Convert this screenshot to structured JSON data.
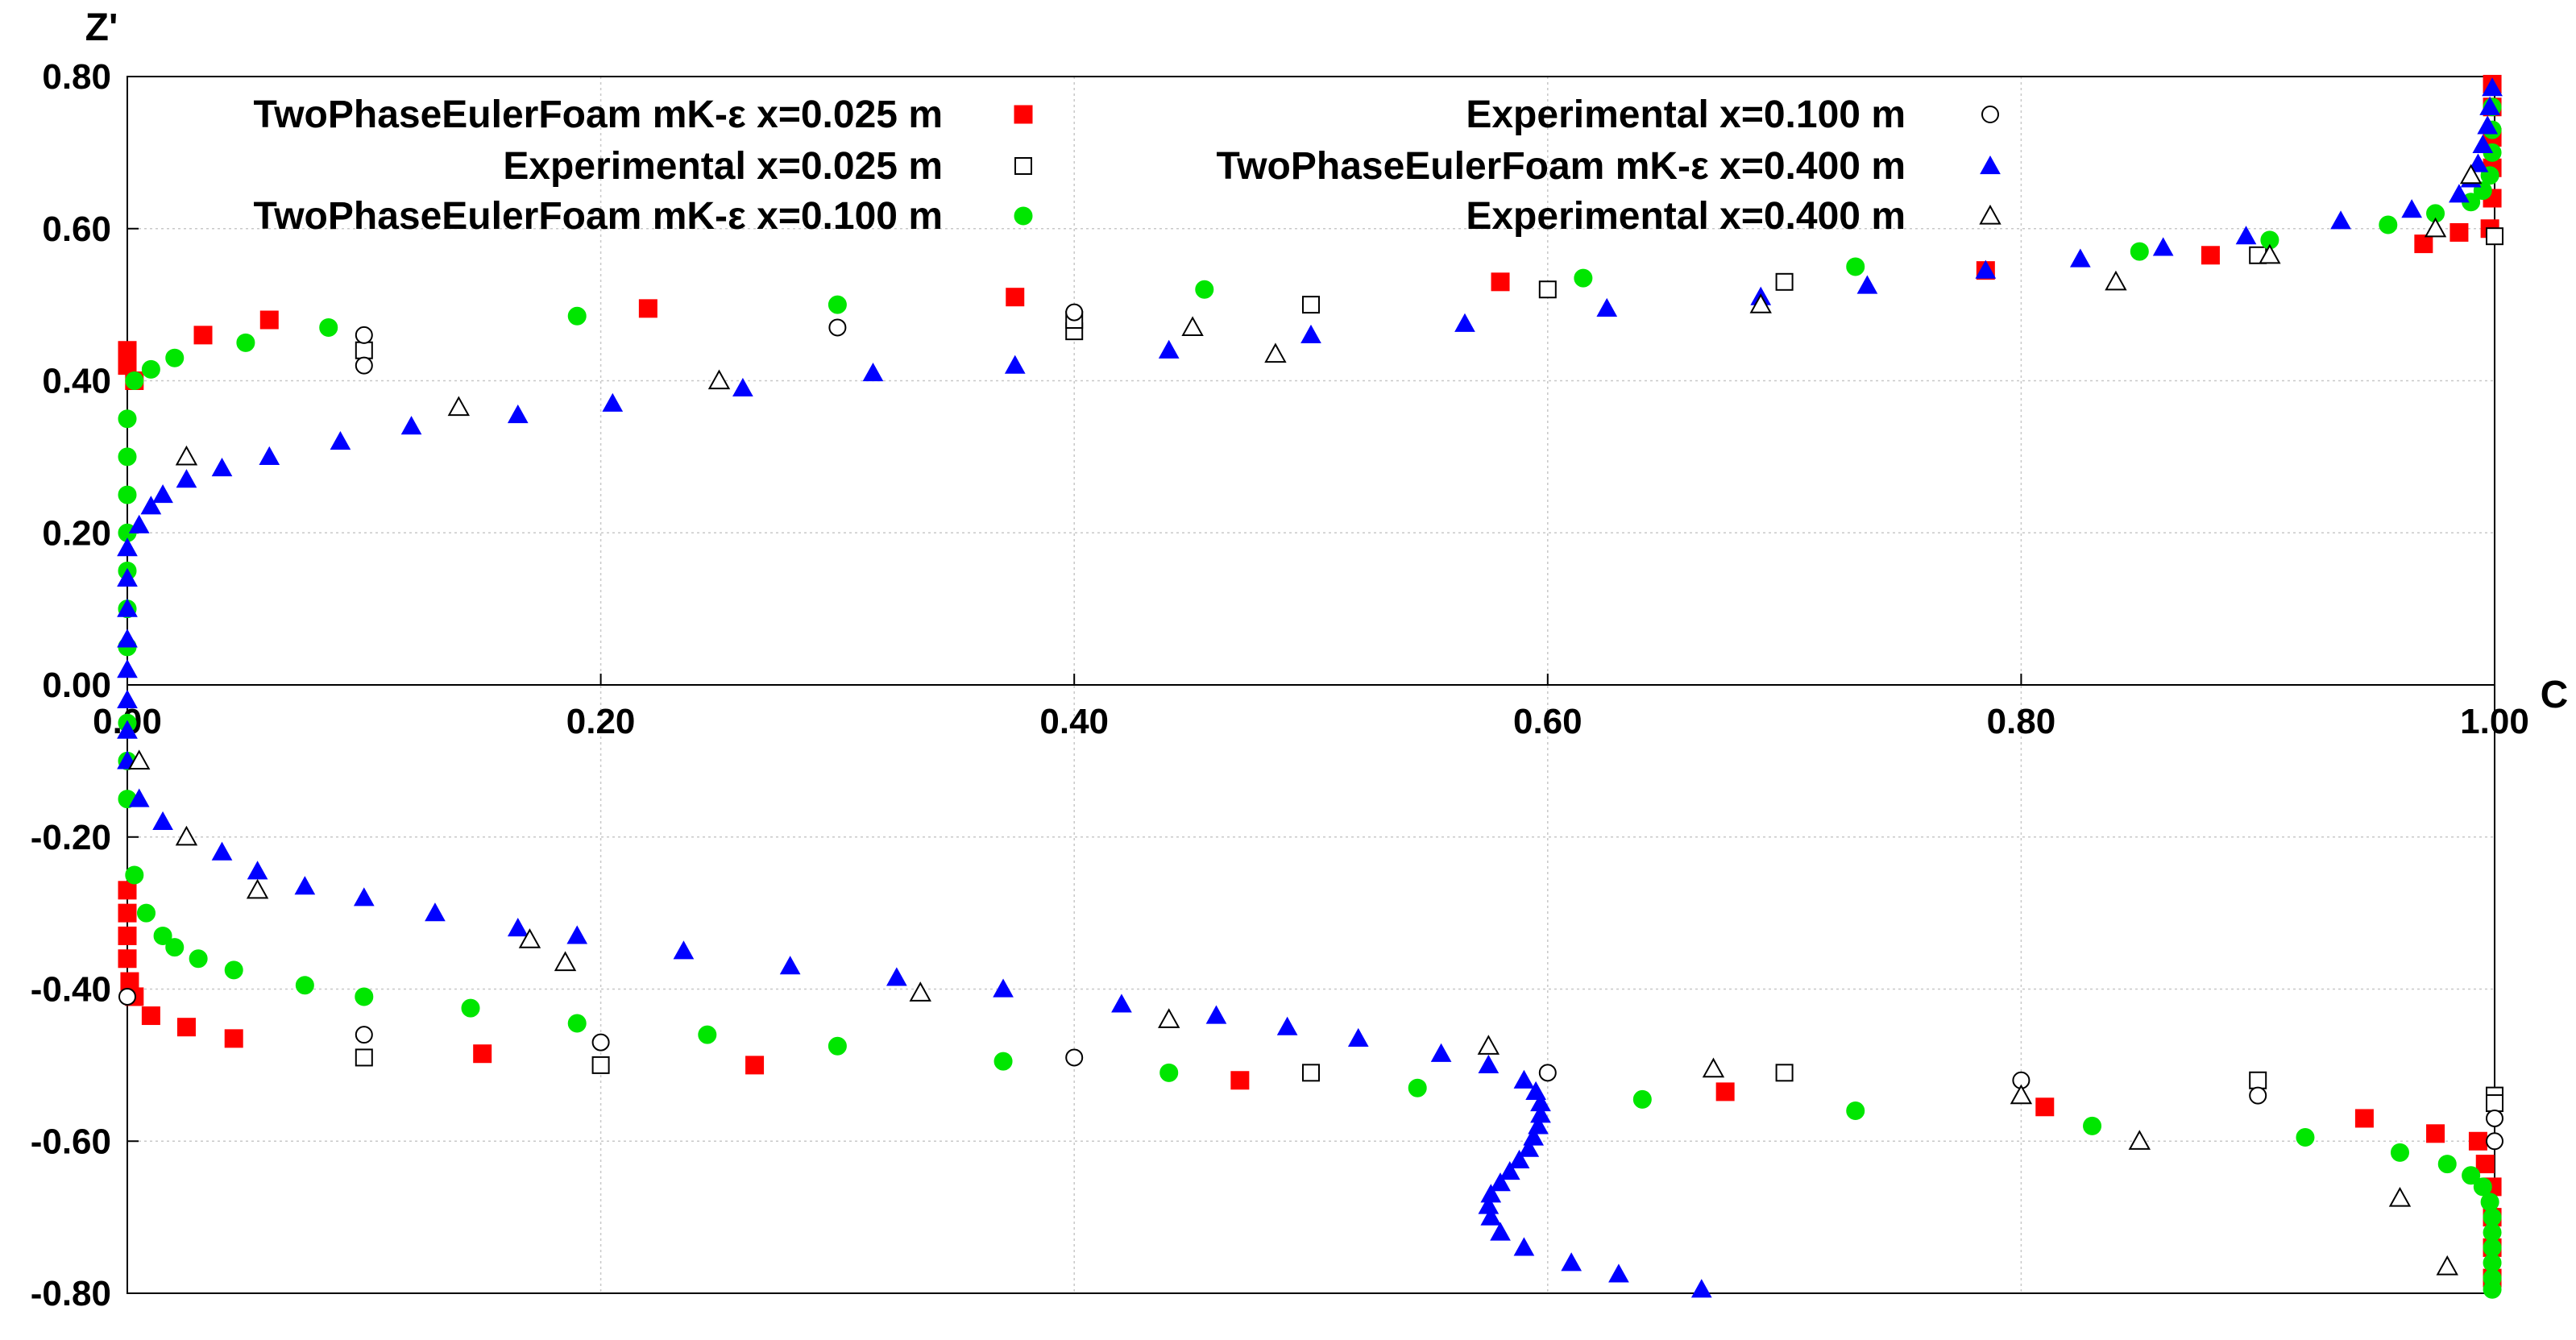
{
  "chart_data": {
    "type": "scatter",
    "xlabel": "C",
    "ylabel": "Z'",
    "xlim": [
      0,
      1
    ],
    "ylim": [
      -0.8,
      0.8
    ],
    "grid": true,
    "legend_position": "top",
    "x_tick_labels": [
      "0.00",
      "0.20",
      "0.40",
      "0.60",
      "0.80",
      "1.00"
    ],
    "y_tick_labels": [
      "0.80",
      "0.60",
      "0.40",
      "0.20",
      "0.00",
      "-0.20",
      "-0.40",
      "-0.60",
      "-0.80"
    ],
    "series": [
      {
        "name": "TwoPhaseEulerFoam mK-ε x=0.025 m",
        "marker": "square-filled",
        "color": "#ff0000",
        "points": [
          [
            0.0,
            0.44
          ],
          [
            0.0,
            0.42
          ],
          [
            0.003,
            0.4
          ],
          [
            0.032,
            0.46
          ],
          [
            0.06,
            0.48
          ],
          [
            0.22,
            0.495
          ],
          [
            0.375,
            0.51
          ],
          [
            0.58,
            0.53
          ],
          [
            0.785,
            0.545
          ],
          [
            0.88,
            0.565
          ],
          [
            0.97,
            0.58
          ],
          [
            0.985,
            0.595
          ],
          [
            0.998,
            0.6
          ],
          [
            0.999,
            0.64
          ],
          [
            0.999,
            0.68
          ],
          [
            0.999,
            0.72
          ],
          [
            0.999,
            0.76
          ],
          [
            0.999,
            0.79
          ],
          [
            0.0,
            -0.27
          ],
          [
            0.0,
            -0.3
          ],
          [
            0.0,
            -0.33
          ],
          [
            0.0,
            -0.36
          ],
          [
            0.001,
            -0.39
          ],
          [
            0.003,
            -0.41
          ],
          [
            0.01,
            -0.435
          ],
          [
            0.025,
            -0.45
          ],
          [
            0.045,
            -0.465
          ],
          [
            0.15,
            -0.485
          ],
          [
            0.265,
            -0.5
          ],
          [
            0.47,
            -0.52
          ],
          [
            0.675,
            -0.535
          ],
          [
            0.81,
            -0.555
          ],
          [
            0.945,
            -0.57
          ],
          [
            0.975,
            -0.59
          ],
          [
            0.993,
            -0.6
          ],
          [
            0.996,
            -0.63
          ],
          [
            0.999,
            -0.66
          ],
          [
            0.999,
            -0.7
          ],
          [
            0.999,
            -0.74
          ],
          [
            0.999,
            -0.78
          ]
        ]
      },
      {
        "name": "Experimental x=0.025 m",
        "marker": "square-open",
        "color": "#000000",
        "points": [
          [
            0.1,
            0.44
          ],
          [
            0.4,
            0.465
          ],
          [
            0.4,
            0.48
          ],
          [
            0.5,
            0.5
          ],
          [
            0.6,
            0.52
          ],
          [
            0.7,
            0.53
          ],
          [
            0.9,
            0.565
          ],
          [
            1.0,
            0.59
          ],
          [
            0.1,
            -0.49
          ],
          [
            0.2,
            -0.5
          ],
          [
            0.5,
            -0.51
          ],
          [
            0.7,
            -0.51
          ],
          [
            0.9,
            -0.52
          ],
          [
            1.0,
            -0.54
          ],
          [
            1.0,
            -0.55
          ]
        ]
      },
      {
        "name": "TwoPhaseEulerFoam mK-ε x=0.100 m",
        "marker": "circle-filled",
        "color": "#00e600",
        "points": [
          [
            0.0,
            0.05
          ],
          [
            0.0,
            0.1
          ],
          [
            0.0,
            0.15
          ],
          [
            0.0,
            0.2
          ],
          [
            0.0,
            0.25
          ],
          [
            0.0,
            0.3
          ],
          [
            0.0,
            0.35
          ],
          [
            0.003,
            0.4
          ],
          [
            0.01,
            0.415
          ],
          [
            0.02,
            0.43
          ],
          [
            0.05,
            0.45
          ],
          [
            0.085,
            0.47
          ],
          [
            0.19,
            0.485
          ],
          [
            0.3,
            0.5
          ],
          [
            0.455,
            0.52
          ],
          [
            0.615,
            0.535
          ],
          [
            0.73,
            0.55
          ],
          [
            0.85,
            0.57
          ],
          [
            0.905,
            0.585
          ],
          [
            0.955,
            0.605
          ],
          [
            0.975,
            0.62
          ],
          [
            0.99,
            0.635
          ],
          [
            0.995,
            0.65
          ],
          [
            0.998,
            0.67
          ],
          [
            0.999,
            0.7
          ],
          [
            0.999,
            0.73
          ],
          [
            0.999,
            0.76
          ],
          [
            0.0,
            -0.05
          ],
          [
            0.0,
            -0.1
          ],
          [
            0.0,
            -0.15
          ],
          [
            0.003,
            -0.25
          ],
          [
            0.008,
            -0.3
          ],
          [
            0.015,
            -0.33
          ],
          [
            0.02,
            -0.345
          ],
          [
            0.03,
            -0.36
          ],
          [
            0.045,
            -0.375
          ],
          [
            0.075,
            -0.395
          ],
          [
            0.1,
            -0.41
          ],
          [
            0.145,
            -0.425
          ],
          [
            0.19,
            -0.445
          ],
          [
            0.245,
            -0.46
          ],
          [
            0.3,
            -0.475
          ],
          [
            0.37,
            -0.495
          ],
          [
            0.44,
            -0.51
          ],
          [
            0.545,
            -0.53
          ],
          [
            0.64,
            -0.545
          ],
          [
            0.73,
            -0.56
          ],
          [
            0.83,
            -0.58
          ],
          [
            0.92,
            -0.595
          ],
          [
            0.96,
            -0.615
          ],
          [
            0.98,
            -0.63
          ],
          [
            0.99,
            -0.645
          ],
          [
            0.995,
            -0.66
          ],
          [
            0.998,
            -0.68
          ],
          [
            0.999,
            -0.7
          ],
          [
            0.999,
            -0.72
          ],
          [
            0.999,
            -0.74
          ],
          [
            0.999,
            -0.76
          ],
          [
            0.999,
            -0.78
          ],
          [
            0.999,
            -0.795
          ]
        ]
      },
      {
        "name": "Experimental x=0.100 m",
        "marker": "circle-open",
        "color": "#000000",
        "points": [
          [
            0.1,
            0.46
          ],
          [
            0.1,
            0.42
          ],
          [
            0.3,
            0.47
          ],
          [
            0.4,
            0.49
          ],
          [
            0.0,
            -0.41
          ],
          [
            0.1,
            -0.46
          ],
          [
            0.2,
            -0.47
          ],
          [
            0.4,
            -0.49
          ],
          [
            0.6,
            -0.51
          ],
          [
            0.8,
            -0.52
          ],
          [
            0.9,
            -0.54
          ],
          [
            1.0,
            -0.57
          ],
          [
            1.0,
            -0.6
          ]
        ]
      },
      {
        "name": "TwoPhaseEulerFoam mK-ε x=0.400 m",
        "marker": "triangle-filled",
        "color": "#0000ff",
        "points": [
          [
            0.0,
            0.02
          ],
          [
            0.0,
            0.06
          ],
          [
            0.0,
            0.1
          ],
          [
            0.0,
            0.14
          ],
          [
            0.0,
            0.18
          ],
          [
            0.005,
            0.21
          ],
          [
            0.01,
            0.235
          ],
          [
            0.015,
            0.25
          ],
          [
            0.025,
            0.27
          ],
          [
            0.04,
            0.285
          ],
          [
            0.06,
            0.3
          ],
          [
            0.09,
            0.32
          ],
          [
            0.12,
            0.34
          ],
          [
            0.165,
            0.355
          ],
          [
            0.205,
            0.37
          ],
          [
            0.26,
            0.39
          ],
          [
            0.315,
            0.41
          ],
          [
            0.375,
            0.42
          ],
          [
            0.44,
            0.44
          ],
          [
            0.5,
            0.46
          ],
          [
            0.565,
            0.475
          ],
          [
            0.625,
            0.495
          ],
          [
            0.69,
            0.51
          ],
          [
            0.735,
            0.525
          ],
          [
            0.785,
            0.545
          ],
          [
            0.825,
            0.56
          ],
          [
            0.86,
            0.575
          ],
          [
            0.895,
            0.59
          ],
          [
            0.935,
            0.61
          ],
          [
            0.965,
            0.625
          ],
          [
            0.985,
            0.645
          ],
          [
            0.99,
            0.665
          ],
          [
            0.993,
            0.685
          ],
          [
            0.995,
            0.71
          ],
          [
            0.997,
            0.735
          ],
          [
            0.998,
            0.76
          ],
          [
            0.999,
            0.785
          ],
          [
            0.0,
            -0.02
          ],
          [
            0.0,
            -0.06
          ],
          [
            0.0,
            -0.1
          ],
          [
            0.005,
            -0.15
          ],
          [
            0.015,
            -0.18
          ],
          [
            0.025,
            -0.2
          ],
          [
            0.04,
            -0.22
          ],
          [
            0.055,
            -0.245
          ],
          [
            0.075,
            -0.265
          ],
          [
            0.1,
            -0.28
          ],
          [
            0.13,
            -0.3
          ],
          [
            0.165,
            -0.32
          ],
          [
            0.19,
            -0.33
          ],
          [
            0.235,
            -0.35
          ],
          [
            0.28,
            -0.37
          ],
          [
            0.325,
            -0.385
          ],
          [
            0.37,
            -0.4
          ],
          [
            0.42,
            -0.42
          ],
          [
            0.46,
            -0.435
          ],
          [
            0.49,
            -0.45
          ],
          [
            0.52,
            -0.465
          ],
          [
            0.555,
            -0.485
          ],
          [
            0.575,
            -0.5
          ],
          [
            0.59,
            -0.52
          ],
          [
            0.595,
            -0.535
          ],
          [
            0.597,
            -0.55
          ],
          [
            0.597,
            -0.565
          ],
          [
            0.596,
            -0.58
          ],
          [
            0.594,
            -0.595
          ],
          [
            0.592,
            -0.61
          ],
          [
            0.588,
            -0.625
          ],
          [
            0.584,
            -0.64
          ],
          [
            0.58,
            -0.655
          ],
          [
            0.576,
            -0.67
          ],
          [
            0.575,
            -0.685
          ],
          [
            0.576,
            -0.7
          ],
          [
            0.58,
            -0.72
          ],
          [
            0.59,
            -0.74
          ],
          [
            0.61,
            -0.76
          ],
          [
            0.63,
            -0.775
          ],
          [
            0.665,
            -0.795
          ]
        ]
      },
      {
        "name": "Experimental x=0.400 m",
        "marker": "triangle-open",
        "color": "#000000",
        "points": [
          [
            0.025,
            0.3
          ],
          [
            0.14,
            0.365
          ],
          [
            0.25,
            0.4
          ],
          [
            0.485,
            0.435
          ],
          [
            0.45,
            0.47
          ],
          [
            0.69,
            0.5
          ],
          [
            0.84,
            0.53
          ],
          [
            0.905,
            0.565
          ],
          [
            0.975,
            0.6
          ],
          [
            0.99,
            0.67
          ],
          [
            0.005,
            -0.1
          ],
          [
            0.025,
            -0.2
          ],
          [
            0.055,
            -0.27
          ],
          [
            0.17,
            -0.335
          ],
          [
            0.185,
            -0.365
          ],
          [
            0.335,
            -0.405
          ],
          [
            0.44,
            -0.44
          ],
          [
            0.575,
            -0.475
          ],
          [
            0.67,
            -0.505
          ],
          [
            0.8,
            -0.54
          ],
          [
            0.85,
            -0.6
          ],
          [
            0.96,
            -0.675
          ],
          [
            0.98,
            -0.765
          ]
        ]
      }
    ],
    "legend_order": [
      0,
      1,
      2,
      3,
      4,
      5
    ]
  }
}
